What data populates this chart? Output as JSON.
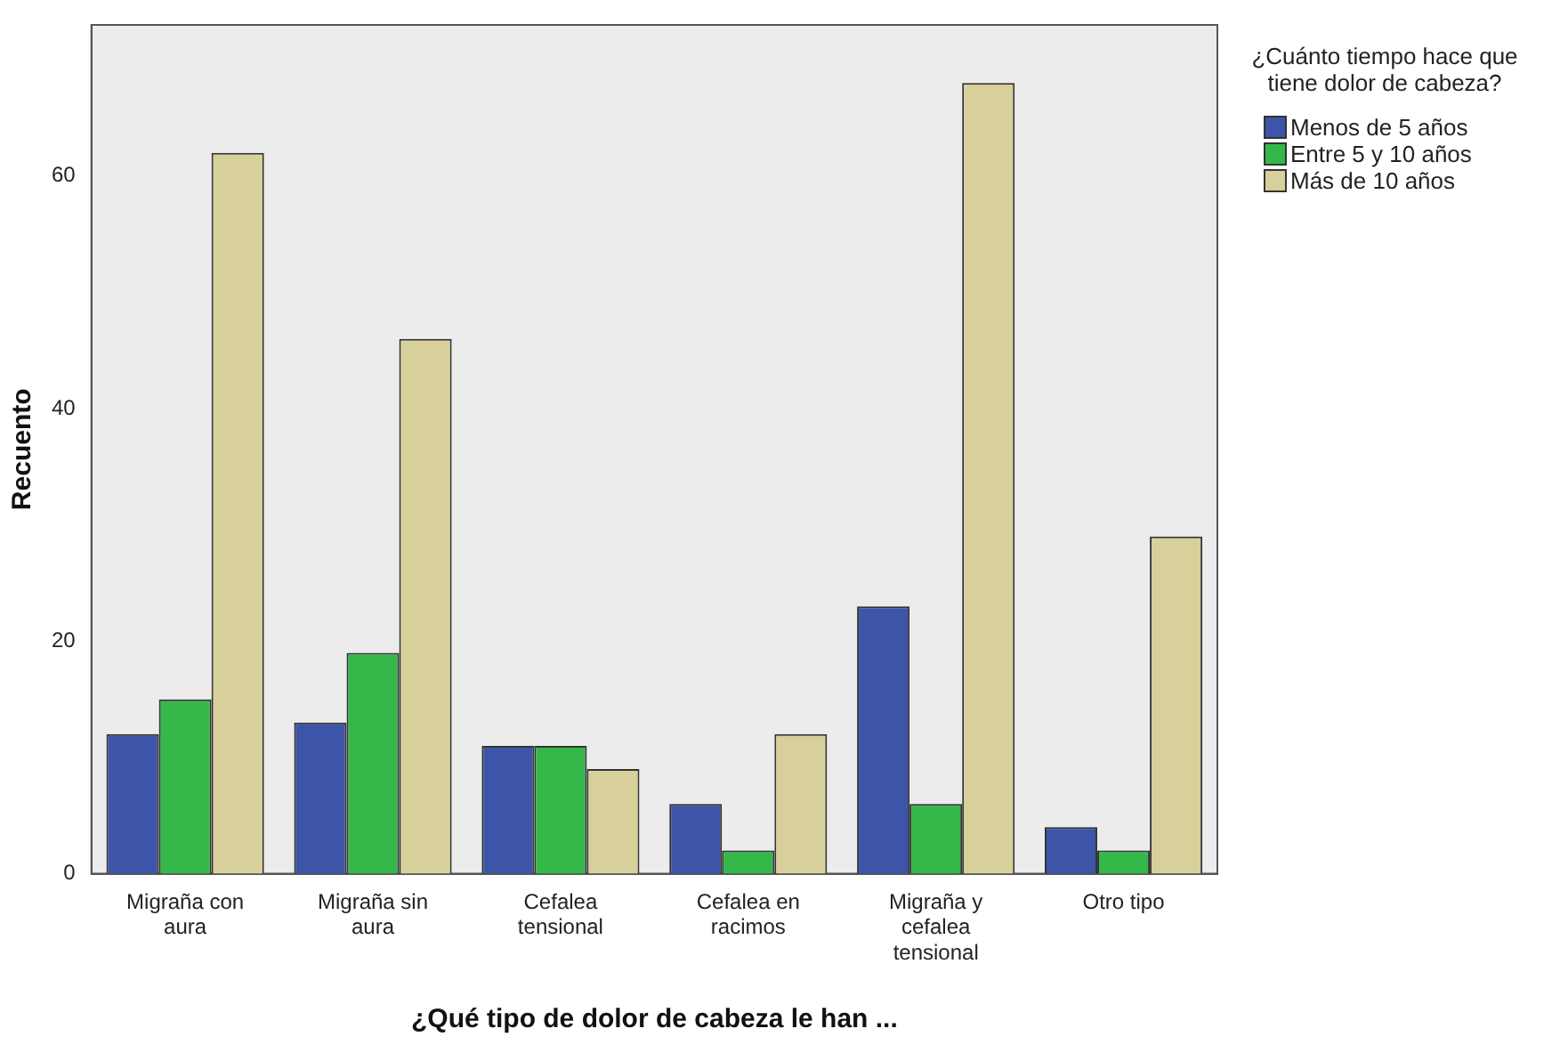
{
  "chart_data": {
    "type": "bar",
    "xlabel": "¿Qué tipo de dolor de cabeza le han ...",
    "ylabel": "Recuento",
    "legend_title": "¿Cuánto tiempo hace que tiene dolor de cabeza?",
    "legend": "right",
    "grid": false,
    "categories": [
      "Migraña con aura",
      "Migraña sin aura",
      "Cefalea tensional",
      "Cefalea en racimos",
      "Migraña y cefalea tensional",
      "Otro tipo"
    ],
    "ylim": [
      0,
      73
    ],
    "yticks": [
      0,
      20,
      40,
      60
    ],
    "series": [
      {
        "name": "Menos de 5 años",
        "color": "#3d55a8",
        "values": [
          12,
          13,
          11,
          6,
          23,
          4
        ]
      },
      {
        "name": "Entre 5 y 10 años",
        "color": "#34b84a",
        "values": [
          15,
          19,
          11,
          2,
          6,
          2
        ]
      },
      {
        "name": "Más de 10 años",
        "color": "#d8d09b",
        "values": [
          62,
          46,
          9,
          12,
          68,
          29
        ]
      }
    ]
  }
}
